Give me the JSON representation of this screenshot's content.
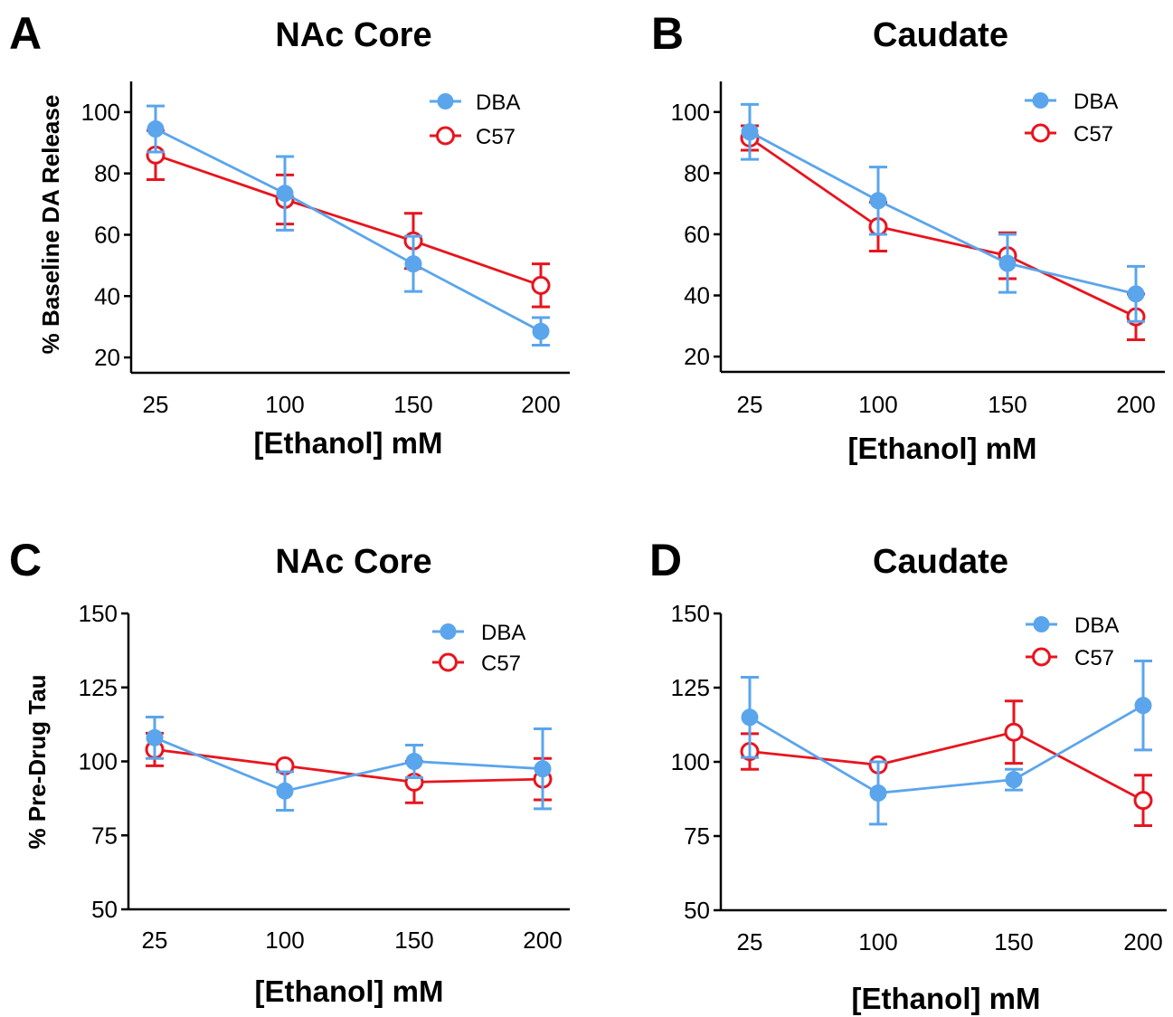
{
  "colors": {
    "DBA": "#5aa5ec",
    "C57": "#e8141e"
  },
  "chart_data": [
    {
      "type": "line",
      "letter": "A",
      "title": "NAc Core",
      "xlabel": "[Ethanol] mM",
      "ylabel": "% Baseline DA Release",
      "categories": [
        "25",
        "100",
        "150",
        "200"
      ],
      "ylim": [
        15,
        110
      ],
      "yticks": [
        20,
        40,
        60,
        80,
        100
      ],
      "legend_position": "top-right",
      "series": [
        {
          "name": "DBA",
          "marker": "filled-circle",
          "values": [
            94.5,
            73.5,
            50.5,
            28.5
          ],
          "errors": [
            7.5,
            12,
            9,
            4.5
          ]
        },
        {
          "name": "C57",
          "marker": "open-circle",
          "values": [
            86,
            71.5,
            58,
            43.5
          ],
          "errors": [
            8,
            8,
            9,
            7
          ]
        }
      ]
    },
    {
      "type": "line",
      "letter": "B",
      "title": "Caudate",
      "xlabel": "[Ethanol] mM",
      "ylabel": "",
      "categories": [
        "25",
        "100",
        "150",
        "200"
      ],
      "ylim": [
        15,
        110
      ],
      "yticks": [
        20,
        40,
        60,
        80,
        100
      ],
      "legend_position": "top-right",
      "series": [
        {
          "name": "DBA",
          "marker": "filled-circle",
          "values": [
            93.5,
            71,
            50.5,
            40.5
          ],
          "errors": [
            9,
            11,
            9.5,
            9
          ]
        },
        {
          "name": "C57",
          "marker": "open-circle",
          "values": [
            91.5,
            62.5,
            53,
            33
          ],
          "errors": [
            4,
            8,
            7.5,
            7.5
          ]
        }
      ]
    },
    {
      "type": "line",
      "letter": "C",
      "title": "NAc Core",
      "xlabel": "[Ethanol] mM",
      "ylabel": "% Pre-Drug  Tau",
      "categories": [
        "25",
        "100",
        "150",
        "200"
      ],
      "ylim": [
        50,
        150
      ],
      "yticks": [
        50,
        75,
        100,
        125,
        150
      ],
      "legend_position": "top-right",
      "series": [
        {
          "name": "DBA",
          "marker": "filled-circle",
          "values": [
            108,
            90,
            100,
            97.5
          ],
          "errors": [
            7,
            6.5,
            5.5,
            13.5
          ]
        },
        {
          "name": "C57",
          "marker": "open-circle",
          "values": [
            104,
            98.5,
            93,
            94
          ],
          "errors": [
            5.5,
            0,
            7,
            7
          ]
        }
      ]
    },
    {
      "type": "line",
      "letter": "D",
      "title": "Caudate",
      "xlabel": "[Ethanol] mM",
      "ylabel": "",
      "categories": [
        "25",
        "100",
        "150",
        "200"
      ],
      "ylim": [
        50,
        150
      ],
      "yticks": [
        50,
        75,
        100,
        125,
        150
      ],
      "legend_position": "top-right",
      "series": [
        {
          "name": "DBA",
          "marker": "filled-circle",
          "values": [
            115,
            89.5,
            94,
            119
          ],
          "errors": [
            13.5,
            10.5,
            3.5,
            15
          ]
        },
        {
          "name": "C57",
          "marker": "open-circle",
          "values": [
            103.5,
            99,
            110,
            87
          ],
          "errors": [
            6,
            0,
            10.5,
            8.5
          ]
        }
      ]
    }
  ]
}
